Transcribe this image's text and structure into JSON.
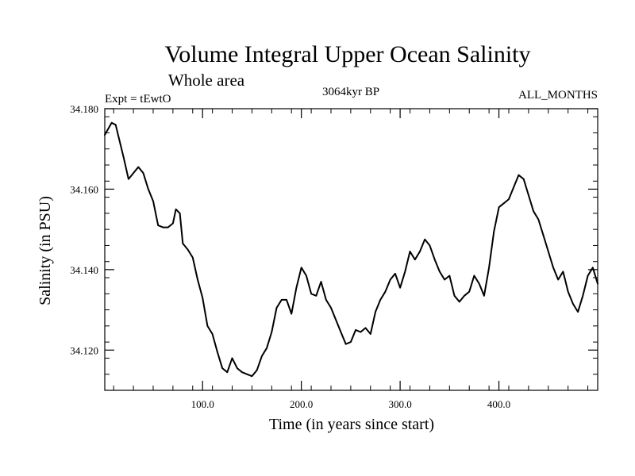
{
  "chart_data": {
    "type": "line",
    "title": "Volume Integral Upper Ocean Salinity",
    "subtitle": "Whole area",
    "left_label": "Expt = tEwtO",
    "center_label": "3064kyr BP",
    "right_label": "ALL_MONTHS",
    "xlabel": "Time (in years since start)",
    "ylabel": "Salinity (in PSU)",
    "xlim": [
      1,
      500
    ],
    "ylim": [
      34.11,
      34.18
    ],
    "x_ticks": [
      100,
      200,
      300,
      400
    ],
    "x_tick_labels": [
      "100.0",
      "200.0",
      "300.0",
      "400.0"
    ],
    "y_ticks": [
      34.12,
      34.14,
      34.16,
      34.18
    ],
    "y_tick_labels": [
      "34.120",
      "34.140",
      "34.160",
      "34.180"
    ],
    "grid": false,
    "series": [
      {
        "name": "salinity",
        "x": [
          1,
          8,
          12,
          15,
          20,
          25,
          30,
          35,
          40,
          45,
          50,
          55,
          60,
          65,
          70,
          73,
          77,
          80,
          85,
          90,
          95,
          100,
          105,
          110,
          115,
          120,
          125,
          130,
          135,
          140,
          145,
          150,
          155,
          160,
          165,
          170,
          175,
          180,
          185,
          190,
          195,
          200,
          205,
          210,
          215,
          220,
          225,
          230,
          235,
          240,
          245,
          250,
          255,
          260,
          265,
          270,
          275,
          280,
          285,
          290,
          295,
          300,
          305,
          310,
          315,
          320,
          325,
          330,
          335,
          340,
          345,
          350,
          355,
          360,
          365,
          370,
          375,
          380,
          385,
          390,
          395,
          400,
          405,
          410,
          415,
          420,
          425,
          430,
          435,
          440,
          445,
          450,
          455,
          460,
          465,
          470,
          475,
          480,
          485,
          490,
          495,
          500
        ],
        "y": [
          34.1735,
          34.1765,
          34.176,
          34.173,
          34.168,
          34.1625,
          34.164,
          34.1655,
          34.164,
          34.16,
          34.157,
          34.151,
          34.1505,
          34.1505,
          34.1515,
          34.155,
          34.154,
          34.1465,
          34.145,
          34.143,
          34.1375,
          34.133,
          34.126,
          34.124,
          34.1195,
          34.1155,
          34.1145,
          34.118,
          34.1155,
          34.1145,
          34.114,
          34.1135,
          34.115,
          34.1185,
          34.1205,
          34.1245,
          34.1305,
          34.1325,
          34.1325,
          34.129,
          34.1355,
          34.1405,
          34.1385,
          34.134,
          34.1335,
          34.137,
          34.1325,
          34.1305,
          34.1275,
          34.1245,
          34.1215,
          34.122,
          34.125,
          34.1245,
          34.1255,
          34.124,
          34.1295,
          34.1325,
          34.1345,
          34.1375,
          34.139,
          34.1355,
          34.1395,
          34.1445,
          34.1425,
          34.1445,
          34.1475,
          34.146,
          34.1425,
          34.1395,
          34.1375,
          34.1385,
          34.1335,
          34.132,
          34.1335,
          34.1345,
          34.1385,
          34.1365,
          34.1335,
          34.1405,
          34.1495,
          34.1555,
          34.1565,
          34.1575,
          34.1605,
          34.1635,
          34.1625,
          34.1585,
          34.1545,
          34.1525,
          34.1485,
          34.1445,
          34.1405,
          34.1375,
          34.1395,
          34.1345,
          34.1315,
          34.1295,
          34.1335,
          34.1385,
          34.1405,
          34.1365
        ]
      }
    ]
  }
}
